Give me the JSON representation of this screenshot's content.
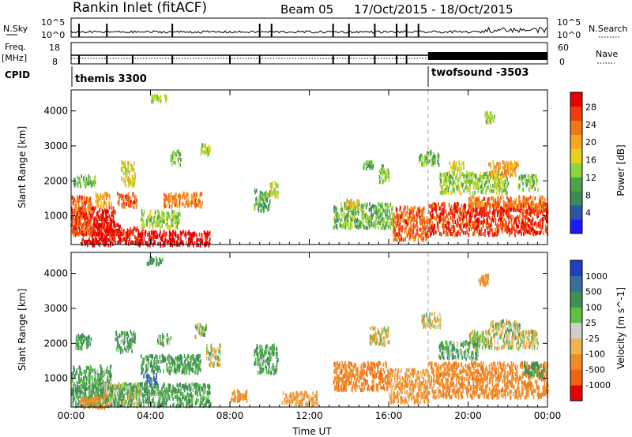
{
  "header": {
    "station": "Rankin Inlet (fitACF)",
    "beam": "Beam 05",
    "date_range": "17/Oct/2015 - 18/Oct/2015"
  },
  "strips": {
    "nsky": {
      "label": "N.Sky",
      "y_ticks": [
        "10^5",
        "10^0"
      ],
      "right_label": "N.Search",
      "right_ticks": [
        "10^5",
        "10^0"
      ]
    },
    "freq": {
      "label_line1": "Freq.",
      "label_line2": "[MHz]",
      "y_ticks": [
        "18",
        "8"
      ],
      "right_label": "Nave",
      "right_ticks": [
        "60",
        "0"
      ]
    },
    "cpid": {
      "label": "CPID",
      "segments": [
        {
          "name": "themis 3300",
          "start_hour": 0
        },
        {
          "name": "twofsound -3503",
          "start_hour": 18
        }
      ]
    }
  },
  "colors": {
    "power_scale": [
      "#1a1aff",
      "#2a55a8",
      "#3b8a5a",
      "#4aa34a",
      "#8cd63c",
      "#e6d21e",
      "#f5a623",
      "#f07814",
      "#f03c0a",
      "#e60000"
    ],
    "velocity_scale": [
      "#2040c0",
      "#3a6ea0",
      "#3f8f55",
      "#5cc040",
      "#cfcfcf",
      "#f0b450",
      "#f08c28",
      "#f06414",
      "#e60000"
    ]
  },
  "chart_data": [
    {
      "type": "heatmap",
      "name": "power",
      "xlabel": "",
      "ylabel": "Slant Range [km]",
      "x_ticks": [
        "00:00",
        "04:00",
        "08:00",
        "12:00",
        "16:00",
        "20:00",
        "00:00"
      ],
      "xlim_hours": [
        0,
        24
      ],
      "y_ticks": [
        1000,
        2000,
        3000,
        4000
      ],
      "ylim_km": [
        180,
        4600
      ],
      "colorbar_label": "Power [dB]",
      "colorbar_ticks": [
        "28",
        "24",
        "20",
        "16",
        "12",
        "8",
        "4"
      ],
      "colorbar_range": [
        0,
        30
      ],
      "grid": false,
      "blobs": [
        {
          "t0": 0.0,
          "t1": 2.2,
          "r0": 500,
          "r1": 1300,
          "v": 28
        },
        {
          "t0": 0.0,
          "t1": 1.0,
          "r0": 500,
          "r1": 1600,
          "v": 24
        },
        {
          "t0": 1.0,
          "t1": 2.5,
          "r0": 350,
          "r1": 800,
          "v": 29
        },
        {
          "t0": 2.0,
          "t1": 3.6,
          "r0": 250,
          "r1": 700,
          "v": 28
        },
        {
          "t0": 3.3,
          "t1": 7.0,
          "r0": 200,
          "r1": 600,
          "v": 30
        },
        {
          "t0": 2.3,
          "t1": 3.3,
          "r0": 1300,
          "r1": 1700,
          "v": 24
        },
        {
          "t0": 1.2,
          "t1": 2.0,
          "r0": 1300,
          "r1": 1700,
          "v": 20
        },
        {
          "t0": 4.6,
          "t1": 6.6,
          "r0": 1300,
          "r1": 1700,
          "v": 22
        },
        {
          "t0": 3.5,
          "t1": 5.5,
          "r0": 700,
          "r1": 1200,
          "v": 14
        },
        {
          "t0": 0.1,
          "t1": 1.2,
          "r0": 1900,
          "r1": 2200,
          "v": 12
        },
        {
          "t0": 2.5,
          "t1": 3.2,
          "r0": 1900,
          "r1": 2600,
          "v": 17
        },
        {
          "t0": 5.0,
          "t1": 5.5,
          "r0": 2500,
          "r1": 2900,
          "v": 12
        },
        {
          "t0": 6.5,
          "t1": 7.0,
          "r0": 2800,
          "r1": 3100,
          "v": 14
        },
        {
          "t0": 9.2,
          "t1": 10.0,
          "r0": 1200,
          "r1": 1800,
          "v": 10
        },
        {
          "t0": 10.0,
          "t1": 10.4,
          "r0": 1600,
          "r1": 2000,
          "v": 16
        },
        {
          "t0": 13.2,
          "t1": 16.2,
          "r0": 700,
          "r1": 1400,
          "v": 12
        },
        {
          "t0": 13.8,
          "t1": 14.5,
          "r0": 1300,
          "r1": 1500,
          "v": 18
        },
        {
          "t0": 15.5,
          "t1": 16.0,
          "r0": 2000,
          "r1": 2500,
          "v": 13
        },
        {
          "t0": 14.7,
          "t1": 15.2,
          "r0": 2400,
          "r1": 2600,
          "v": 10
        },
        {
          "t0": 16.2,
          "t1": 18.0,
          "r0": 350,
          "r1": 1300,
          "v": 24
        },
        {
          "t0": 18.0,
          "t1": 24.0,
          "r0": 500,
          "r1": 1400,
          "v": 26
        },
        {
          "t0": 20.0,
          "t1": 24.0,
          "r0": 1300,
          "r1": 1600,
          "v": 22
        },
        {
          "t0": 18.5,
          "t1": 22.0,
          "r0": 1700,
          "r1": 2300,
          "v": 14
        },
        {
          "t0": 19.0,
          "t1": 19.8,
          "r0": 2300,
          "r1": 2600,
          "v": 17
        },
        {
          "t0": 21.0,
          "t1": 22.5,
          "r0": 2200,
          "r1": 2600,
          "v": 20
        },
        {
          "t0": 22.5,
          "t1": 23.5,
          "r0": 1800,
          "r1": 2200,
          "v": 12
        },
        {
          "t0": 0.5,
          "t1": 2.0,
          "r0": 200,
          "r1": 400,
          "v": 29
        },
        {
          "t0": 4.0,
          "t1": 4.8,
          "r0": 4300,
          "r1": 4500,
          "v": 14
        },
        {
          "t0": 17.5,
          "t1": 18.5,
          "r0": 2500,
          "r1": 2900,
          "v": 12
        },
        {
          "t0": 20.8,
          "t1": 21.3,
          "r0": 3700,
          "r1": 4000,
          "v": 14
        }
      ]
    },
    {
      "type": "heatmap",
      "name": "velocity",
      "xlabel": "Time UT",
      "ylabel": "Slant Range [km]",
      "x_ticks": [
        "00:00",
        "04:00",
        "08:00",
        "12:00",
        "16:00",
        "20:00",
        "00:00"
      ],
      "xlim_hours": [
        0,
        24
      ],
      "y_ticks": [
        1000,
        2000,
        3000,
        4000
      ],
      "ylim_km": [
        180,
        4600
      ],
      "colorbar_label": "Velocity [m s^-1]",
      "colorbar_ticks": [
        "1000",
        "500",
        "100",
        "25",
        "-25",
        "-100",
        "-500",
        "-1000"
      ],
      "colorbar_range": [
        -1200,
        1200
      ],
      "grid": false,
      "blobs": [
        {
          "t0": 0.0,
          "t1": 7.0,
          "r0": 250,
          "r1": 900,
          "v": 150
        },
        {
          "t0": 0.0,
          "t1": 2.0,
          "r0": 600,
          "r1": 1400,
          "v": 120
        },
        {
          "t0": 1.5,
          "t1": 3.5,
          "r0": 300,
          "r1": 900,
          "v": 20
        },
        {
          "t0": 3.5,
          "t1": 6.5,
          "r0": 1200,
          "r1": 1700,
          "v": 150
        },
        {
          "t0": 3.6,
          "t1": 4.3,
          "r0": 900,
          "r1": 1150,
          "v": 900
        },
        {
          "t0": 2.2,
          "t1": 3.2,
          "r0": 1800,
          "r1": 2400,
          "v": 120
        },
        {
          "t0": 0.2,
          "t1": 1.0,
          "r0": 1900,
          "r1": 2300,
          "v": 160
        },
        {
          "t0": 4.3,
          "t1": 5.0,
          "r0": 2000,
          "r1": 2300,
          "v": 80
        },
        {
          "t0": 6.2,
          "t1": 6.8,
          "r0": 2200,
          "r1": 2600,
          "v": 0
        },
        {
          "t0": 6.8,
          "t1": 7.5,
          "r0": 1400,
          "r1": 2000,
          "v": 0
        },
        {
          "t0": 9.2,
          "t1": 10.4,
          "r0": 1200,
          "r1": 2000,
          "v": 120
        },
        {
          "t0": 13.2,
          "t1": 16.0,
          "r0": 700,
          "r1": 1500,
          "v": -450
        },
        {
          "t0": 15.0,
          "t1": 16.0,
          "r0": 2000,
          "r1": 2500,
          "v": -60
        },
        {
          "t0": 16.0,
          "t1": 18.0,
          "r0": 350,
          "r1": 1300,
          "v": -150
        },
        {
          "t0": 18.0,
          "t1": 24.0,
          "r0": 500,
          "r1": 1500,
          "v": -400
        },
        {
          "t0": 20.0,
          "t1": 23.5,
          "r0": 1900,
          "r1": 2400,
          "v": 0
        },
        {
          "t0": 21.0,
          "t1": 22.6,
          "r0": 2400,
          "r1": 2700,
          "v": 0
        },
        {
          "t0": 18.5,
          "t1": 20.5,
          "r0": 1600,
          "r1": 2100,
          "v": 110
        },
        {
          "t0": 22.8,
          "t1": 23.8,
          "r0": 1100,
          "r1": 1500,
          "v": 200
        },
        {
          "t0": 17.6,
          "t1": 18.6,
          "r0": 2500,
          "r1": 2900,
          "v": 0
        },
        {
          "t0": 3.8,
          "t1": 4.6,
          "r0": 4300,
          "r1": 4500,
          "v": 130
        },
        {
          "t0": 8.0,
          "t1": 9.0,
          "r0": 400,
          "r1": 700,
          "v": -200
        },
        {
          "t0": 10.6,
          "t1": 12.4,
          "r0": 300,
          "r1": 650,
          "v": -150
        },
        {
          "t0": 0.4,
          "t1": 1.8,
          "r0": 200,
          "r1": 500,
          "v": -300
        },
        {
          "t0": 20.5,
          "t1": 21.0,
          "r0": 3700,
          "r1": 4000,
          "v": -300
        }
      ]
    }
  ]
}
